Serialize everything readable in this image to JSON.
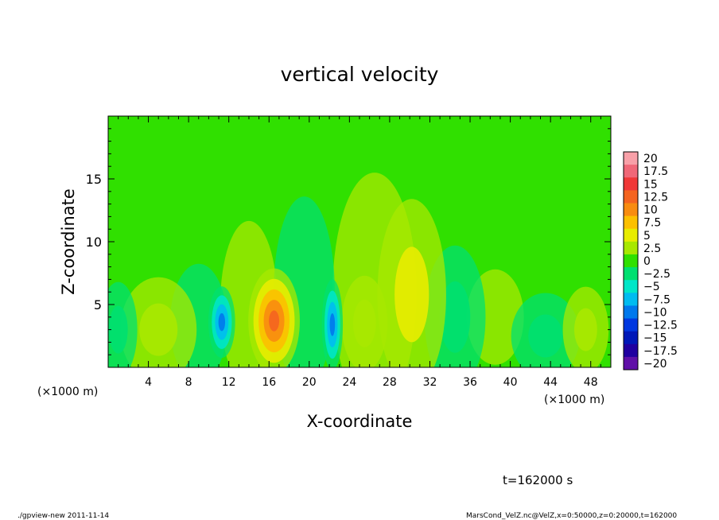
{
  "chart_data": {
    "type": "heatmap",
    "title": "vertical velocity",
    "xlabel": "X-coordinate",
    "ylabel": "Z-coordinate",
    "x_unit": "(×1000 m)",
    "y_unit": "(×1000 m)",
    "xlim": [
      0,
      50
    ],
    "ylim": [
      0,
      20
    ],
    "x_ticks": [
      "4",
      "8",
      "12",
      "16",
      "20",
      "24",
      "28",
      "32",
      "36",
      "40",
      "44",
      "48"
    ],
    "x_tick_values": [
      4,
      8,
      12,
      16,
      20,
      24,
      28,
      32,
      36,
      40,
      44,
      48
    ],
    "y_ticks": [
      "5",
      "10",
      "15"
    ],
    "y_tick_values": [
      5,
      10,
      15
    ],
    "colorbar": {
      "labels": [
        "20",
        "17.5",
        "15",
        "12.5",
        "10",
        "7.5",
        "5",
        "2.5",
        "0",
        "−2.5",
        "−5",
        "−7.5",
        "−10",
        "−12.5",
        "−15",
        "−17.5",
        "−20"
      ],
      "colors": [
        "#f8a0a8",
        "#f06878",
        "#f03838",
        "#f46420",
        "#f88c10",
        "#fcc000",
        "#e8ec00",
        "#a8e800",
        "#30e000",
        "#00e070",
        "#00e6c8",
        "#00bcf0",
        "#0078ec",
        "#0038e0",
        "#0018b8",
        "#2000a0",
        "#6010a8"
      ]
    },
    "features": [
      {
        "x": 16.5,
        "z": 3.7,
        "value": 12,
        "sx": 1.35,
        "sz": 2.2
      },
      {
        "x": 11.3,
        "z": 3.6,
        "value": -10,
        "sx": 0.7,
        "sz": 1.5
      },
      {
        "x": 22.3,
        "z": 3.4,
        "value": -10,
        "sx": 0.55,
        "sz": 1.9
      },
      {
        "x": 30.2,
        "z": 5.8,
        "value": 5,
        "sx": 1.8,
        "sz": 4.0
      },
      {
        "x": 26.5,
        "z": 6.0,
        "value": 2,
        "sx": 2.2,
        "sz": 5.0
      },
      {
        "x": 5.0,
        "z": 3.0,
        "value": 3,
        "sx": 2.0,
        "sz": 2.2
      },
      {
        "x": 1.0,
        "z": 3.0,
        "value": -3,
        "sx": 1.0,
        "sz": 2.0
      },
      {
        "x": 9.0,
        "z": 3.5,
        "value": -2.5,
        "sx": 1.5,
        "sz": 2.5
      },
      {
        "x": 14.0,
        "z": 5.0,
        "value": 2,
        "sx": 1.5,
        "sz": 3.5
      },
      {
        "x": 19.5,
        "z": 6.0,
        "value": -2.5,
        "sx": 1.6,
        "sz": 4.0
      },
      {
        "x": 25.5,
        "z": 3.5,
        "value": 3,
        "sx": 1.2,
        "sz": 2.0
      },
      {
        "x": 34.5,
        "z": 4.0,
        "value": -3,
        "sx": 1.6,
        "sz": 3.0
      },
      {
        "x": 38.5,
        "z": 4.0,
        "value": 2,
        "sx": 1.5,
        "sz": 2.0
      },
      {
        "x": 43.5,
        "z": 2.5,
        "value": -3,
        "sx": 1.8,
        "sz": 1.8
      },
      {
        "x": 47.5,
        "z": 3.0,
        "value": 3,
        "sx": 1.2,
        "sz": 1.8
      }
    ],
    "time": "t=162000 s",
    "footer_left": "./gpview-new   2011-11-14",
    "footer_right": "MarsCond_VelZ.nc@VelZ,x=0:50000,z=0:20000,t=162000"
  }
}
